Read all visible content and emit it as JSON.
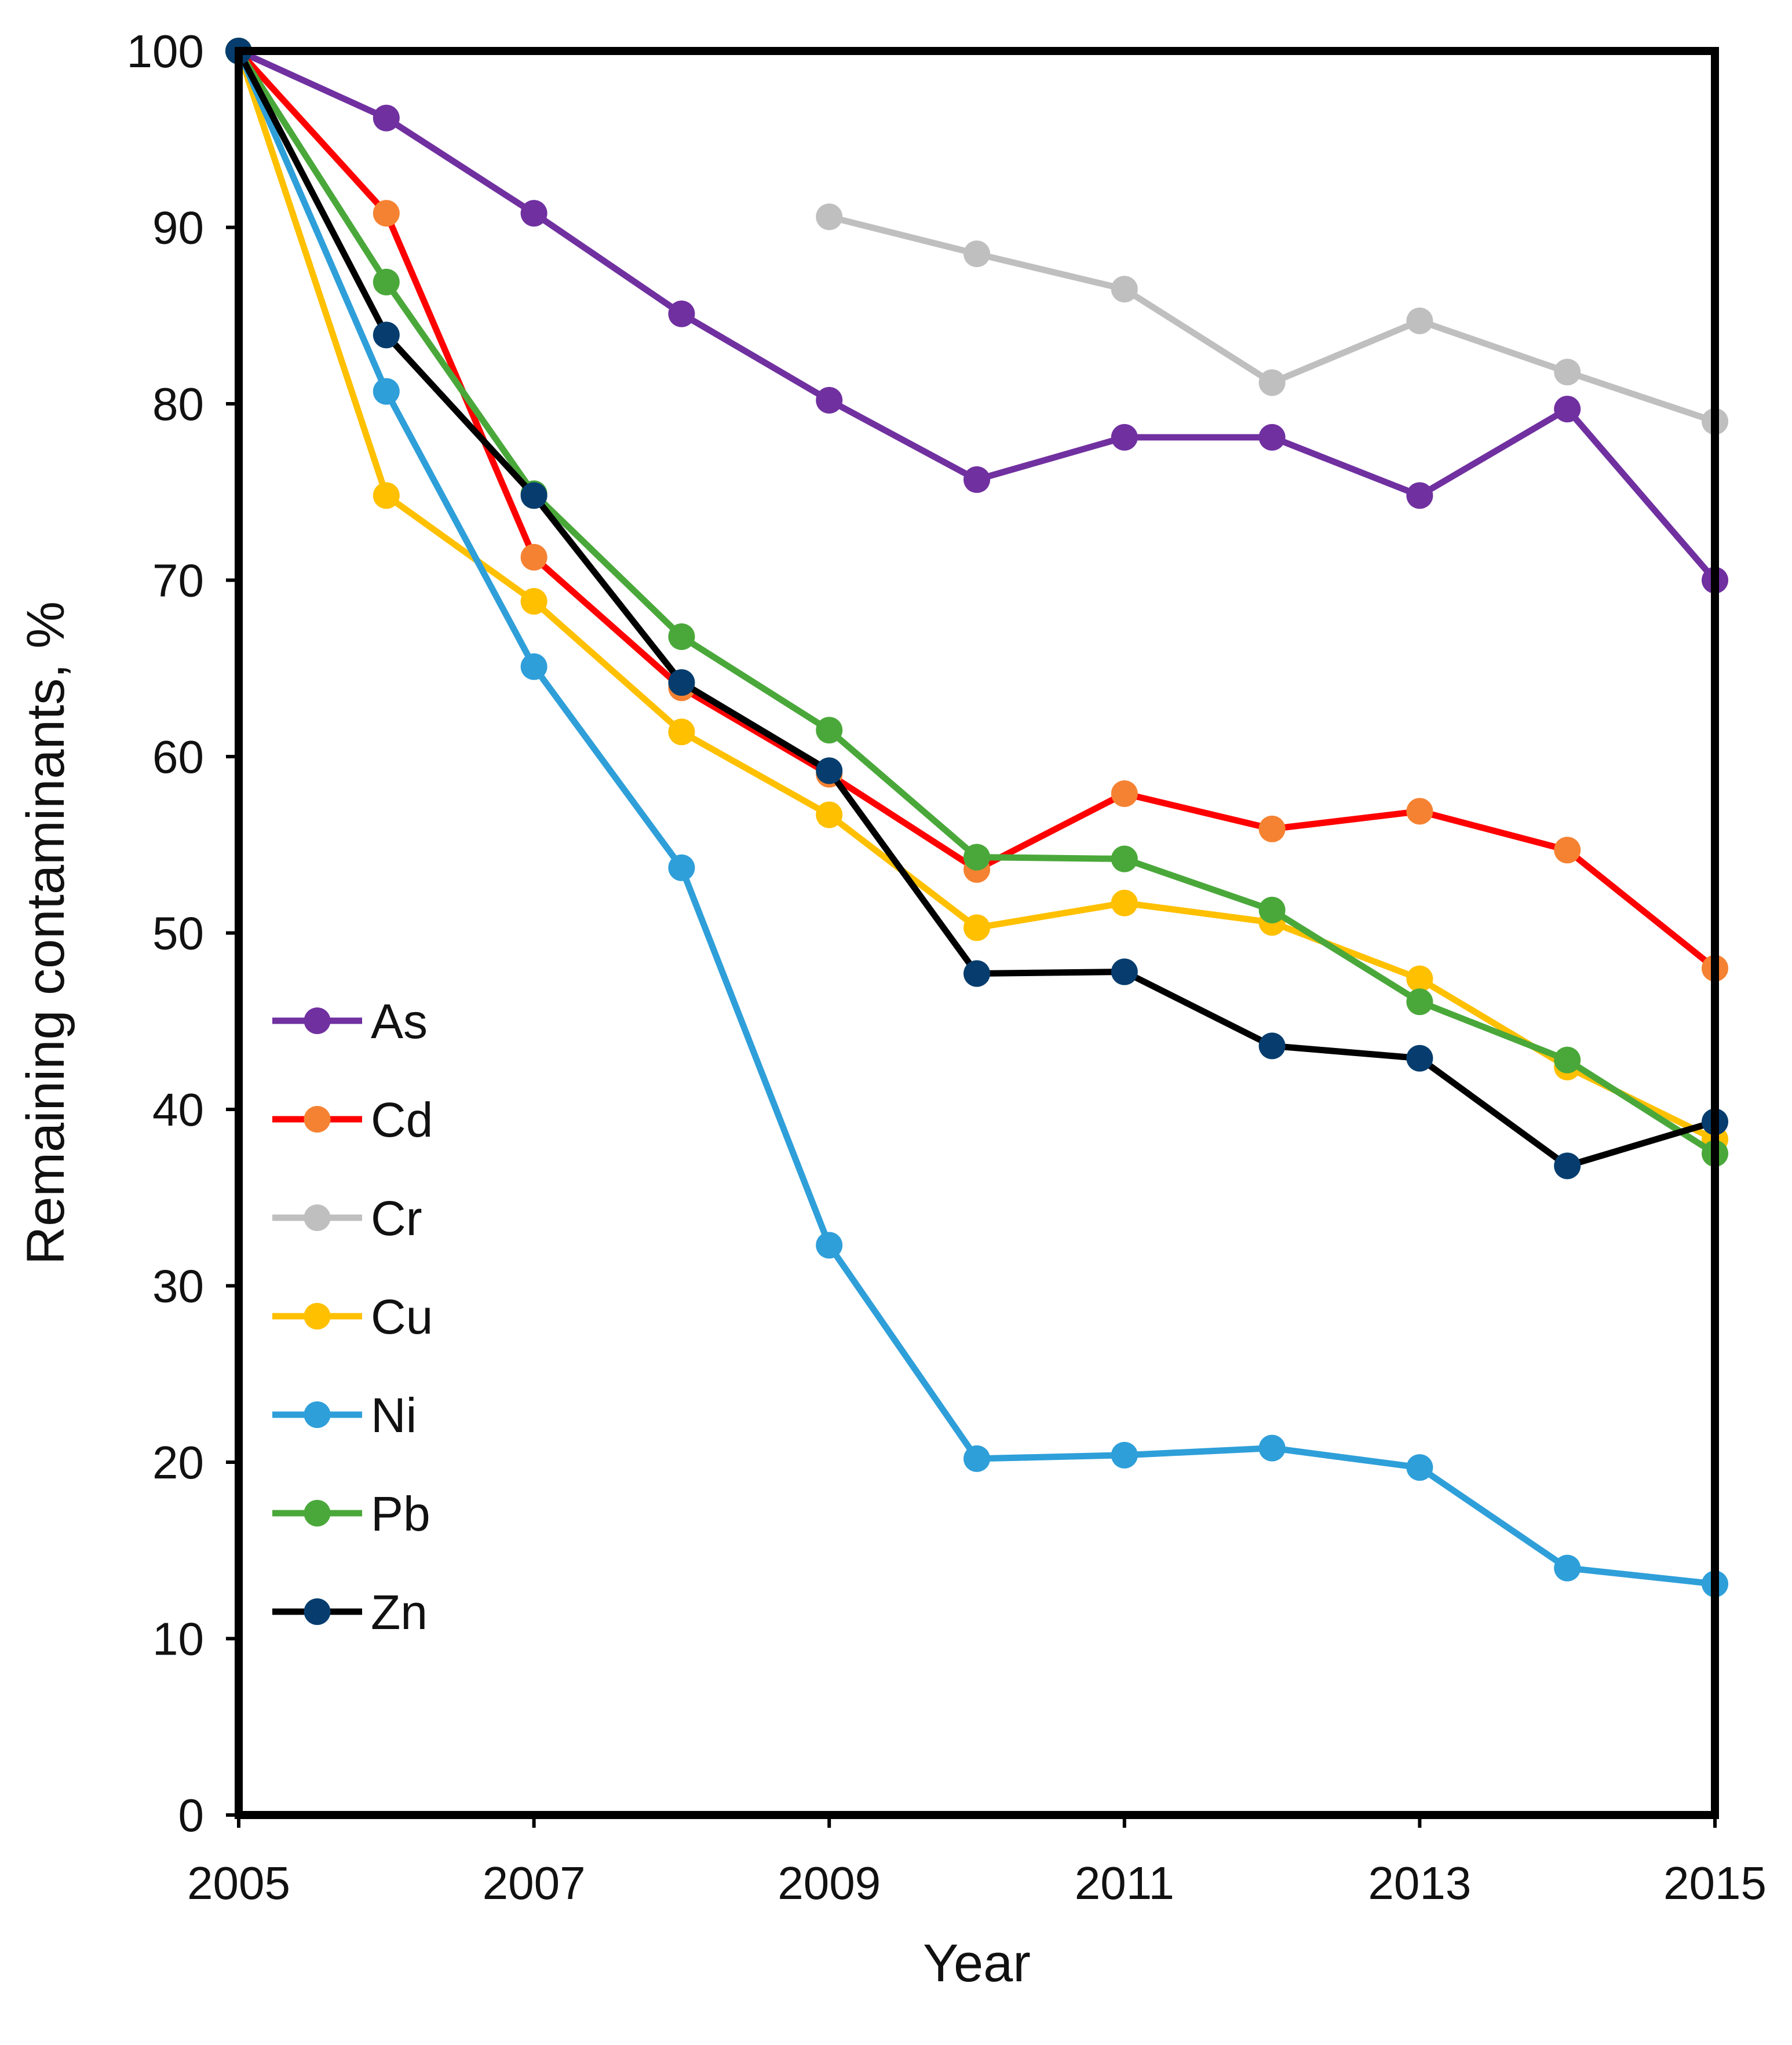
{
  "chart_data": {
    "type": "line",
    "title": "",
    "xlabel": "Year",
    "ylabel": "Remaining contaminants, %",
    "xlim": [
      2005,
      2015
    ],
    "ylim": [
      0,
      100
    ],
    "x_ticks": [
      2005,
      2007,
      2009,
      2011,
      2013,
      2015
    ],
    "y_ticks": [
      0,
      10,
      20,
      30,
      40,
      50,
      60,
      70,
      80,
      90,
      100
    ],
    "grid": false,
    "legend_position": "left",
    "x": [
      2005,
      2006,
      2007,
      2008,
      2009,
      2010,
      2011,
      2012,
      2013,
      2014,
      2015
    ],
    "series": [
      {
        "name": "As",
        "line_color": "#7030A0",
        "marker_color": "#7030A0",
        "values": [
          100,
          96.2,
          90.8,
          85.1,
          80.2,
          75.7,
          78.1,
          78.1,
          74.8,
          79.7,
          70.0
        ]
      },
      {
        "name": "Cd",
        "line_color": "#FF0000",
        "marker_color": "#F58232",
        "values": [
          100,
          90.8,
          71.3,
          63.9,
          59.0,
          53.6,
          57.9,
          55.9,
          56.9,
          54.7,
          48.0
        ]
      },
      {
        "name": "Cr",
        "line_color": "#BFBFBF",
        "marker_color": "#BFBFBF",
        "values": [
          null,
          null,
          null,
          null,
          90.6,
          88.5,
          86.5,
          81.2,
          84.7,
          81.8,
          79.0
        ]
      },
      {
        "name": "Cu",
        "line_color": "#FFC000",
        "marker_color": "#FFC000",
        "values": [
          100,
          74.8,
          68.8,
          61.4,
          56.7,
          50.3,
          51.7,
          50.6,
          47.4,
          42.4,
          38.3
        ]
      },
      {
        "name": "Ni",
        "line_color": "#2E9FD9",
        "marker_color": "#2E9FD9",
        "values": [
          100,
          80.7,
          65.1,
          53.7,
          32.3,
          20.2,
          20.4,
          20.8,
          19.7,
          14.0,
          13.1
        ]
      },
      {
        "name": "Pb",
        "line_color": "#4AA83A",
        "marker_color": "#4AA83A",
        "values": [
          100,
          86.9,
          74.9,
          66.8,
          61.5,
          54.3,
          54.2,
          51.3,
          46.1,
          42.8,
          37.5
        ]
      },
      {
        "name": "Zn",
        "line_color": "#000000",
        "marker_color": "#063D6E",
        "values": [
          100,
          83.9,
          74.8,
          64.2,
          59.2,
          47.7,
          47.8,
          43.6,
          42.9,
          36.8,
          39.3
        ]
      }
    ]
  }
}
